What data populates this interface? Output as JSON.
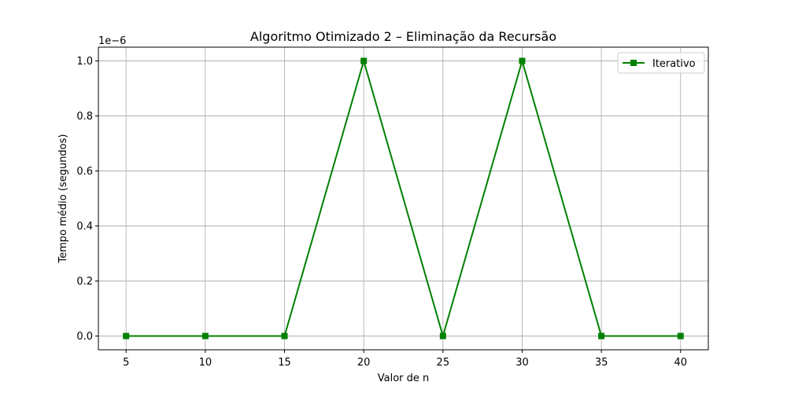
{
  "chart_data": {
    "type": "line",
    "title": "Algoritmo Otimizado 2 – Eliminação da Recursão",
    "xlabel": "Valor de n",
    "ylabel": "Tempo médio (segundos)",
    "y_offset_label": "1e−6",
    "x": [
      5,
      10,
      15,
      20,
      25,
      30,
      35,
      40
    ],
    "x_ticks": [
      "5",
      "10",
      "15",
      "20",
      "25",
      "30",
      "35",
      "40"
    ],
    "y_ticks": [
      "0.0",
      "0.2",
      "0.4",
      "0.6",
      "0.8",
      "1.0"
    ],
    "y_tick_values": [
      0,
      0.2,
      0.4,
      0.6,
      0.8,
      1.0
    ],
    "xlim": [
      3.25,
      41.75
    ],
    "ylim": [
      -0.05,
      1.05
    ],
    "y_scale_note": "values shown in units of 1e-6",
    "grid": true,
    "legend_position": "top-right",
    "series": [
      {
        "name": "Iterativo",
        "color": "#008000",
        "marker": "square",
        "values": [
          0,
          0,
          0,
          1.0,
          0,
          1.0,
          0,
          0
        ]
      }
    ]
  }
}
